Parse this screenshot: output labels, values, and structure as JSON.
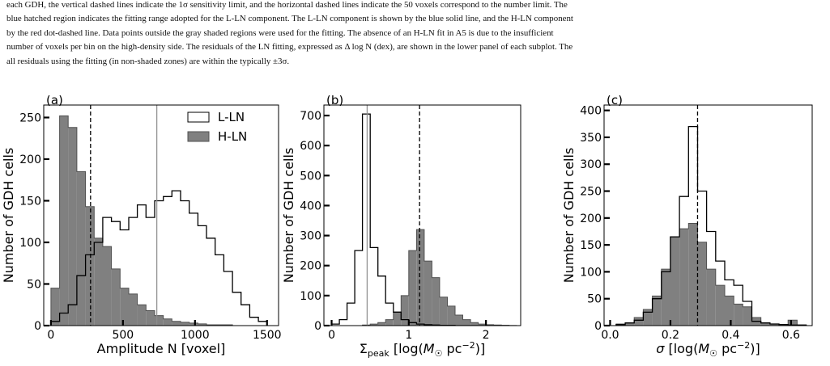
{
  "caption": {
    "lines": [
      "each GDH, the vertical dashed lines indicate the 1σ sensitivity limit, and the horizontal dashed lines indicate the 50 voxels correspond to the number limit. The",
      "blue hatched region indicates the fitting range adopted for the L-LN component. The L-LN component is shown by the blue solid line, and the H-LN component",
      "by the red dot-dashed line. Data points outside the gray shaded regions were used for the fitting. The absence of an H-LN fit in A5 is due to the insufficient",
      "number of voxels per bin on the high-density side. The residuals of the LN fitting, expressed as Δ log N (dex), are shown in the lower panel of each subplot. The",
      "all residuals using the fitting (in non-shaded zones) are within the typically ±3σ."
    ]
  },
  "chart_data": [
    {
      "type": "bar",
      "panel_label": "(a)",
      "xlabel": "Amplitude N [voxel]",
      "ylabel": "Number of GDH cells",
      "xlim": [
        -50,
        1580
      ],
      "ylim": [
        0,
        265
      ],
      "xticks": [
        0,
        500,
        1000,
        1500
      ],
      "yticks": [
        0,
        50,
        100,
        150,
        200,
        250
      ],
      "xtick_labels": [
        "0",
        "500",
        "1000",
        "1500"
      ],
      "ytick_labels": [
        "0",
        "50",
        "100",
        "150",
        "200",
        "250"
      ],
      "legend": {
        "placement": "top-right",
        "entries": [
          "L-LN",
          "H-LN"
        ]
      },
      "dashed_vline": 275,
      "solid_vline": 735,
      "series": [
        {
          "name": "L-LN",
          "style": "step-outline",
          "color": "#000000",
          "edges": [
            0,
            60,
            120,
            180,
            240,
            300,
            360,
            420,
            480,
            540,
            600,
            660,
            720,
            780,
            840,
            900,
            960,
            1020,
            1080,
            1140,
            1200,
            1260,
            1320,
            1380,
            1440,
            1500
          ],
          "values": [
            5,
            15,
            25,
            60,
            85,
            100,
            130,
            125,
            115,
            130,
            145,
            130,
            150,
            155,
            162,
            150,
            135,
            120,
            105,
            85,
            65,
            40,
            25,
            10,
            5
          ]
        },
        {
          "name": "H-LN",
          "style": "filled",
          "color": "#808080",
          "edges": [
            0,
            60,
            120,
            180,
            240,
            300,
            360,
            420,
            480,
            540,
            600,
            660,
            720,
            780,
            840,
            900,
            960,
            1020,
            1080,
            1140,
            1200,
            1260,
            1320,
            1380
          ],
          "values": [
            45,
            252,
            238,
            185,
            143,
            105,
            95,
            68,
            45,
            38,
            25,
            18,
            12,
            8,
            5,
            4,
            3,
            2,
            1,
            1,
            1,
            0,
            0
          ]
        }
      ]
    },
    {
      "type": "bar",
      "panel_label": "(b)",
      "xlabel": "Σpeak [log(M☉ pc⁻²)]",
      "xlabel_parts": [
        "Σ",
        "peak",
        " [log(",
        "M",
        "☉",
        " pc",
        "−2",
        ")]"
      ],
      "ylabel": "Number of GDH cells",
      "xlim": [
        -0.1,
        2.45
      ],
      "ylim": [
        0,
        735
      ],
      "xticks": [
        0,
        1,
        2
      ],
      "yticks": [
        0,
        100,
        200,
        300,
        400,
        500,
        600,
        700
      ],
      "xtick_labels": [
        "0",
        "1",
        "2"
      ],
      "ytick_labels": [
        "0",
        "100",
        "200",
        "300",
        "400",
        "500",
        "600",
        "700"
      ],
      "dashed_vline": 1.14,
      "solid_vline": 0.46,
      "series": [
        {
          "name": "L-LN",
          "style": "step-outline",
          "color": "#000000",
          "edges": [
            0.0,
            0.1,
            0.2,
            0.3,
            0.4,
            0.5,
            0.6,
            0.7,
            0.8,
            0.9,
            1.0,
            1.1,
            1.2,
            1.3,
            1.4,
            1.5,
            1.6,
            1.7,
            1.8,
            1.9,
            2.0,
            2.1,
            2.2,
            2.3,
            2.4
          ],
          "values": [
            5,
            20,
            75,
            250,
            705,
            260,
            165,
            75,
            45,
            20,
            10,
            5,
            3,
            2,
            1,
            1,
            0,
            0,
            0,
            0,
            0,
            0,
            0,
            0
          ]
        },
        {
          "name": "H-LN",
          "style": "filled",
          "color": "#808080",
          "edges": [
            0.0,
            0.1,
            0.2,
            0.3,
            0.4,
            0.5,
            0.6,
            0.7,
            0.8,
            0.9,
            1.0,
            1.1,
            1.2,
            1.3,
            1.4,
            1.5,
            1.6,
            1.7,
            1.8,
            1.9,
            2.0,
            2.1,
            2.2,
            2.3,
            2.4
          ],
          "values": [
            0,
            0,
            0,
            0,
            2,
            5,
            10,
            20,
            45,
            100,
            250,
            320,
            215,
            160,
            95,
            65,
            35,
            20,
            10,
            5,
            3,
            2,
            1,
            0
          ]
        }
      ]
    },
    {
      "type": "bar",
      "panel_label": "(c)",
      "xlabel": "σ [log(M☉ pc⁻²)]",
      "xlabel_parts": [
        "σ",
        " [log(",
        "M",
        "☉",
        " pc",
        "−2",
        ")]"
      ],
      "ylabel": "Number of GDH cells",
      "xlim": [
        -0.02,
        0.67
      ],
      "ylim": [
        0,
        410
      ],
      "xticks": [
        0.0,
        0.2,
        0.4,
        0.6
      ],
      "yticks": [
        0,
        50,
        100,
        150,
        200,
        250,
        300,
        350,
        400
      ],
      "xtick_labels": [
        "0.0",
        "0.2",
        "0.4",
        "0.6"
      ],
      "ytick_labels": [
        "0",
        "50",
        "100",
        "150",
        "200",
        "250",
        "300",
        "350",
        "400"
      ],
      "dashed_vline": 0.29,
      "series": [
        {
          "name": "L-LN",
          "style": "step-outline",
          "color": "#000000",
          "edges": [
            0.02,
            0.05,
            0.08,
            0.11,
            0.14,
            0.17,
            0.2,
            0.23,
            0.26,
            0.29,
            0.32,
            0.35,
            0.38,
            0.41,
            0.44,
            0.47,
            0.5,
            0.53,
            0.56,
            0.59,
            0.62,
            0.65
          ],
          "values": [
            2,
            5,
            10,
            25,
            50,
            100,
            165,
            240,
            370,
            250,
            175,
            120,
            85,
            75,
            45,
            8,
            5,
            3,
            2,
            1,
            1
          ]
        },
        {
          "name": "H-LN",
          "style": "filled",
          "color": "#808080",
          "edges": [
            0.02,
            0.05,
            0.08,
            0.11,
            0.14,
            0.17,
            0.2,
            0.23,
            0.26,
            0.29,
            0.32,
            0.35,
            0.38,
            0.41,
            0.44,
            0.47,
            0.5,
            0.53,
            0.56,
            0.59,
            0.62,
            0.65
          ],
          "values": [
            3,
            5,
            15,
            30,
            55,
            105,
            165,
            180,
            190,
            155,
            105,
            75,
            55,
            40,
            35,
            15,
            5,
            3,
            2,
            10,
            1
          ]
        }
      ]
    }
  ]
}
